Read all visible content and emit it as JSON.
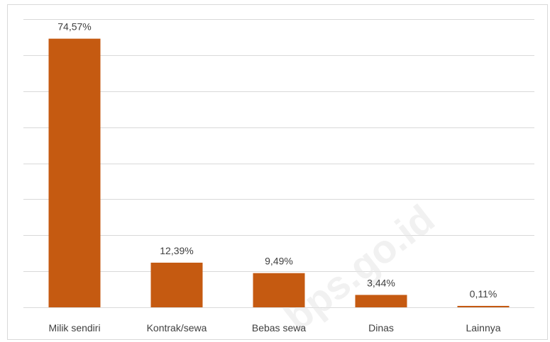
{
  "chart_data": {
    "type": "bar",
    "categories": [
      "Milik sendiri",
      "Kontrak/sewa",
      "Bebas sewa",
      "Dinas",
      "Lainnya"
    ],
    "values": [
      74.57,
      12.39,
      9.49,
      3.44,
      0.11
    ],
    "data_labels": [
      "74,57%",
      "12,39%",
      "9,49%",
      "3,44%",
      "0,11%"
    ],
    "ylim": [
      0,
      80
    ],
    "ytick_step": 10,
    "grid": true,
    "legend": "none",
    "bar_color": "#C55A11"
  },
  "watermark": "bps.go.id"
}
